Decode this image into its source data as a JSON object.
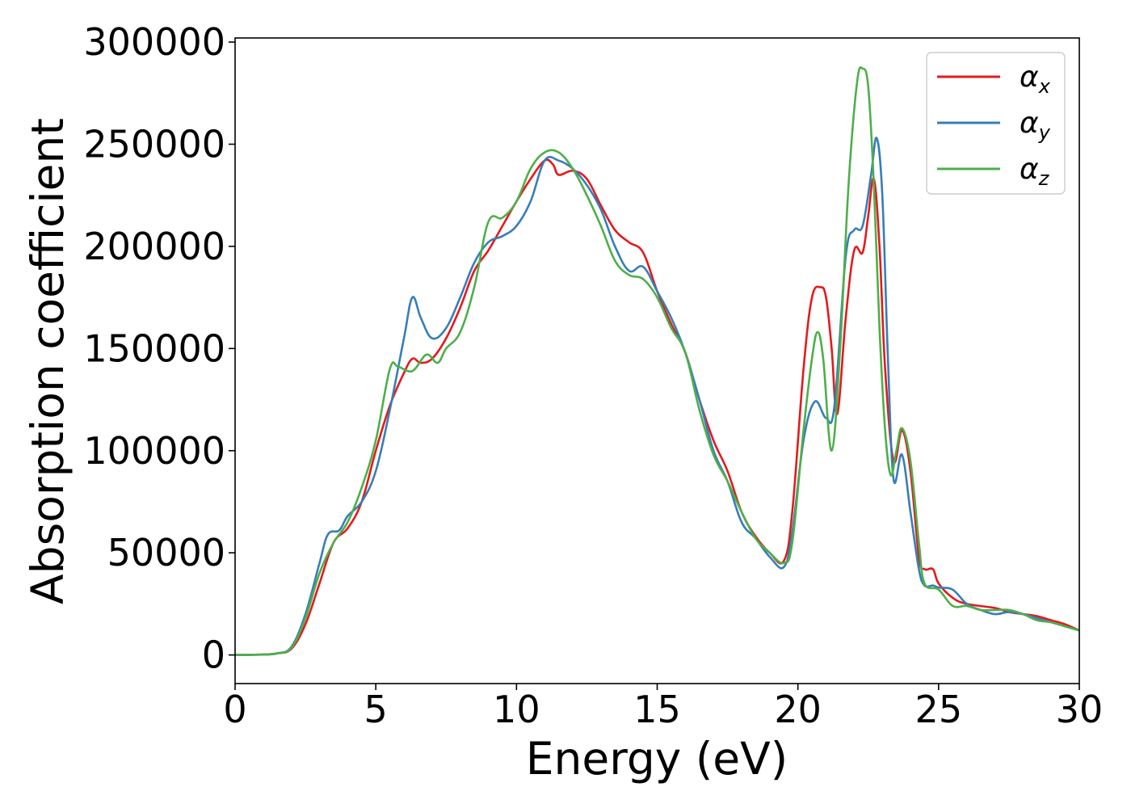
{
  "chart_data": {
    "type": "line",
    "title": "",
    "xlabel": "Energy (eV)",
    "ylabel": "Absorption coefficient",
    "xlim": [
      0,
      30
    ],
    "ylim": [
      -14000,
      302000
    ],
    "xticks": [
      0,
      5,
      10,
      15,
      20,
      25,
      30
    ],
    "xtick_labels": [
      "0",
      "5",
      "10",
      "15",
      "20",
      "25",
      "30"
    ],
    "yticks": [
      0,
      50000,
      100000,
      150000,
      200000,
      250000,
      300000
    ],
    "ytick_labels": [
      "0",
      "50000",
      "100000",
      "150000",
      "200000",
      "250000",
      "300000"
    ],
    "grid": false,
    "legend_position": "top-right",
    "series": [
      {
        "name": "α_x",
        "label_main": "α",
        "label_sub": "x",
        "color": "#e41a1c",
        "points": [
          [
            0,
            0
          ],
          [
            1,
            200
          ],
          [
            1.5,
            800
          ],
          [
            2,
            3000
          ],
          [
            2.5,
            15000
          ],
          [
            3,
            35000
          ],
          [
            3.5,
            55000
          ],
          [
            4,
            62000
          ],
          [
            4.5,
            75000
          ],
          [
            5,
            100000
          ],
          [
            5.5,
            122000
          ],
          [
            6,
            138000
          ],
          [
            6.3,
            145000
          ],
          [
            6.6,
            143000
          ],
          [
            7,
            145000
          ],
          [
            7.5,
            155000
          ],
          [
            8,
            170000
          ],
          [
            8.5,
            188000
          ],
          [
            9,
            198000
          ],
          [
            9.5,
            210000
          ],
          [
            10,
            222000
          ],
          [
            10.5,
            233000
          ],
          [
            11,
            242000
          ],
          [
            11.3,
            240000
          ],
          [
            11.5,
            235000
          ],
          [
            12,
            237000
          ],
          [
            12.5,
            233000
          ],
          [
            13,
            220000
          ],
          [
            13.5,
            208000
          ],
          [
            14,
            202000
          ],
          [
            14.5,
            197000
          ],
          [
            15,
            178000
          ],
          [
            15.5,
            162000
          ],
          [
            16,
            148000
          ],
          [
            16.5,
            125000
          ],
          [
            17,
            105000
          ],
          [
            17.5,
            90000
          ],
          [
            18,
            70000
          ],
          [
            18.5,
            58000
          ],
          [
            19,
            50000
          ],
          [
            19.5,
            46000
          ],
          [
            19.8,
            70000
          ],
          [
            20.2,
            140000
          ],
          [
            20.5,
            175000
          ],
          [
            20.8,
            180000
          ],
          [
            21,
            175000
          ],
          [
            21.2,
            150000
          ],
          [
            21.4,
            118000
          ],
          [
            21.7,
            165000
          ],
          [
            22,
            198000
          ],
          [
            22.3,
            197000
          ],
          [
            22.5,
            215000
          ],
          [
            22.7,
            233000
          ],
          [
            22.9,
            200000
          ],
          [
            23.1,
            140000
          ],
          [
            23.4,
            95000
          ],
          [
            23.7,
            110000
          ],
          [
            24,
            90000
          ],
          [
            24.3,
            48000
          ],
          [
            24.5,
            42000
          ],
          [
            24.8,
            42000
          ],
          [
            25,
            35000
          ],
          [
            25.5,
            28000
          ],
          [
            26,
            25000
          ],
          [
            27,
            23000
          ],
          [
            27.5,
            21000
          ],
          [
            28,
            20000
          ],
          [
            28.5,
            19000
          ],
          [
            29,
            17000
          ],
          [
            29.5,
            15000
          ],
          [
            30,
            12000
          ]
        ]
      },
      {
        "name": "α_y",
        "label_main": "α",
        "label_sub": "y",
        "color": "#377eb8",
        "points": [
          [
            0,
            0
          ],
          [
            1,
            200
          ],
          [
            1.5,
            800
          ],
          [
            2,
            4000
          ],
          [
            2.5,
            20000
          ],
          [
            3,
            45000
          ],
          [
            3.3,
            59000
          ],
          [
            3.7,
            61000
          ],
          [
            4,
            68000
          ],
          [
            4.5,
            75000
          ],
          [
            5,
            90000
          ],
          [
            5.5,
            120000
          ],
          [
            6,
            155000
          ],
          [
            6.3,
            175000
          ],
          [
            6.6,
            165000
          ],
          [
            7,
            155000
          ],
          [
            7.5,
            160000
          ],
          [
            8,
            175000
          ],
          [
            8.5,
            192000
          ],
          [
            9,
            202000
          ],
          [
            9.5,
            205000
          ],
          [
            10,
            210000
          ],
          [
            10.5,
            222000
          ],
          [
            11,
            242000
          ],
          [
            11.5,
            242000
          ],
          [
            12,
            238000
          ],
          [
            12.5,
            230000
          ],
          [
            13,
            218000
          ],
          [
            13.5,
            200000
          ],
          [
            14,
            188000
          ],
          [
            14.5,
            190000
          ],
          [
            15,
            178000
          ],
          [
            15.5,
            165000
          ],
          [
            16,
            148000
          ],
          [
            16.5,
            125000
          ],
          [
            17,
            100000
          ],
          [
            17.5,
            85000
          ],
          [
            18,
            65000
          ],
          [
            18.5,
            57000
          ],
          [
            19,
            48000
          ],
          [
            19.5,
            43000
          ],
          [
            19.8,
            60000
          ],
          [
            20.2,
            105000
          ],
          [
            20.6,
            124000
          ],
          [
            21,
            116000
          ],
          [
            21.3,
            122000
          ],
          [
            21.7,
            195000
          ],
          [
            22,
            208000
          ],
          [
            22.3,
            210000
          ],
          [
            22.6,
            235000
          ],
          [
            22.8,
            253000
          ],
          [
            23,
            225000
          ],
          [
            23.2,
            145000
          ],
          [
            23.4,
            86000
          ],
          [
            23.7,
            98000
          ],
          [
            24,
            70000
          ],
          [
            24.3,
            42000
          ],
          [
            24.5,
            34000
          ],
          [
            24.8,
            34000
          ],
          [
            25,
            33000
          ],
          [
            25.5,
            32000
          ],
          [
            26,
            25000
          ],
          [
            26.5,
            22000
          ],
          [
            27,
            20000
          ],
          [
            27.5,
            21000
          ],
          [
            28,
            20000
          ],
          [
            28.5,
            18000
          ],
          [
            29,
            16000
          ],
          [
            29.5,
            14000
          ],
          [
            30,
            12000
          ]
        ]
      },
      {
        "name": "α_z",
        "label_main": "α",
        "label_sub": "z",
        "color": "#4daf4a",
        "points": [
          [
            0,
            0
          ],
          [
            1,
            200
          ],
          [
            1.5,
            800
          ],
          [
            2,
            3500
          ],
          [
            2.5,
            18000
          ],
          [
            3,
            40000
          ],
          [
            3.5,
            55000
          ],
          [
            4,
            65000
          ],
          [
            4.5,
            82000
          ],
          [
            5,
            105000
          ],
          [
            5.5,
            140000
          ],
          [
            5.8,
            141000
          ],
          [
            6.3,
            139000
          ],
          [
            6.8,
            147000
          ],
          [
            7.2,
            143000
          ],
          [
            7.5,
            150000
          ],
          [
            8,
            158000
          ],
          [
            8.5,
            180000
          ],
          [
            9,
            212000
          ],
          [
            9.5,
            214000
          ],
          [
            10,
            222000
          ],
          [
            10.5,
            238000
          ],
          [
            11,
            246000
          ],
          [
            11.5,
            246000
          ],
          [
            12,
            238000
          ],
          [
            12.5,
            225000
          ],
          [
            13,
            210000
          ],
          [
            13.5,
            193000
          ],
          [
            14,
            186000
          ],
          [
            14.5,
            184000
          ],
          [
            15,
            175000
          ],
          [
            15.5,
            160000
          ],
          [
            16,
            148000
          ],
          [
            16.5,
            120000
          ],
          [
            17,
            98000
          ],
          [
            17.5,
            85000
          ],
          [
            18,
            70000
          ],
          [
            18.5,
            57000
          ],
          [
            19,
            50000
          ],
          [
            19.5,
            45000
          ],
          [
            19.8,
            55000
          ],
          [
            20.2,
            110000
          ],
          [
            20.5,
            145000
          ],
          [
            20.7,
            158000
          ],
          [
            20.9,
            145000
          ],
          [
            21.2,
            100000
          ],
          [
            21.5,
            150000
          ],
          [
            21.8,
            230000
          ],
          [
            22.1,
            280000
          ],
          [
            22.3,
            287000
          ],
          [
            22.5,
            278000
          ],
          [
            22.7,
            230000
          ],
          [
            22.9,
            160000
          ],
          [
            23.1,
            110000
          ],
          [
            23.3,
            88000
          ],
          [
            23.5,
            100000
          ],
          [
            23.7,
            111000
          ],
          [
            24,
            95000
          ],
          [
            24.3,
            55000
          ],
          [
            24.5,
            35000
          ],
          [
            25,
            32000
          ],
          [
            25.5,
            24000
          ],
          [
            26,
            24000
          ],
          [
            26.5,
            22000
          ],
          [
            27,
            22000
          ],
          [
            27.5,
            22000
          ],
          [
            28,
            20000
          ],
          [
            28.5,
            17000
          ],
          [
            29,
            16000
          ],
          [
            29.5,
            14000
          ],
          [
            30,
            12000
          ]
        ]
      }
    ]
  }
}
